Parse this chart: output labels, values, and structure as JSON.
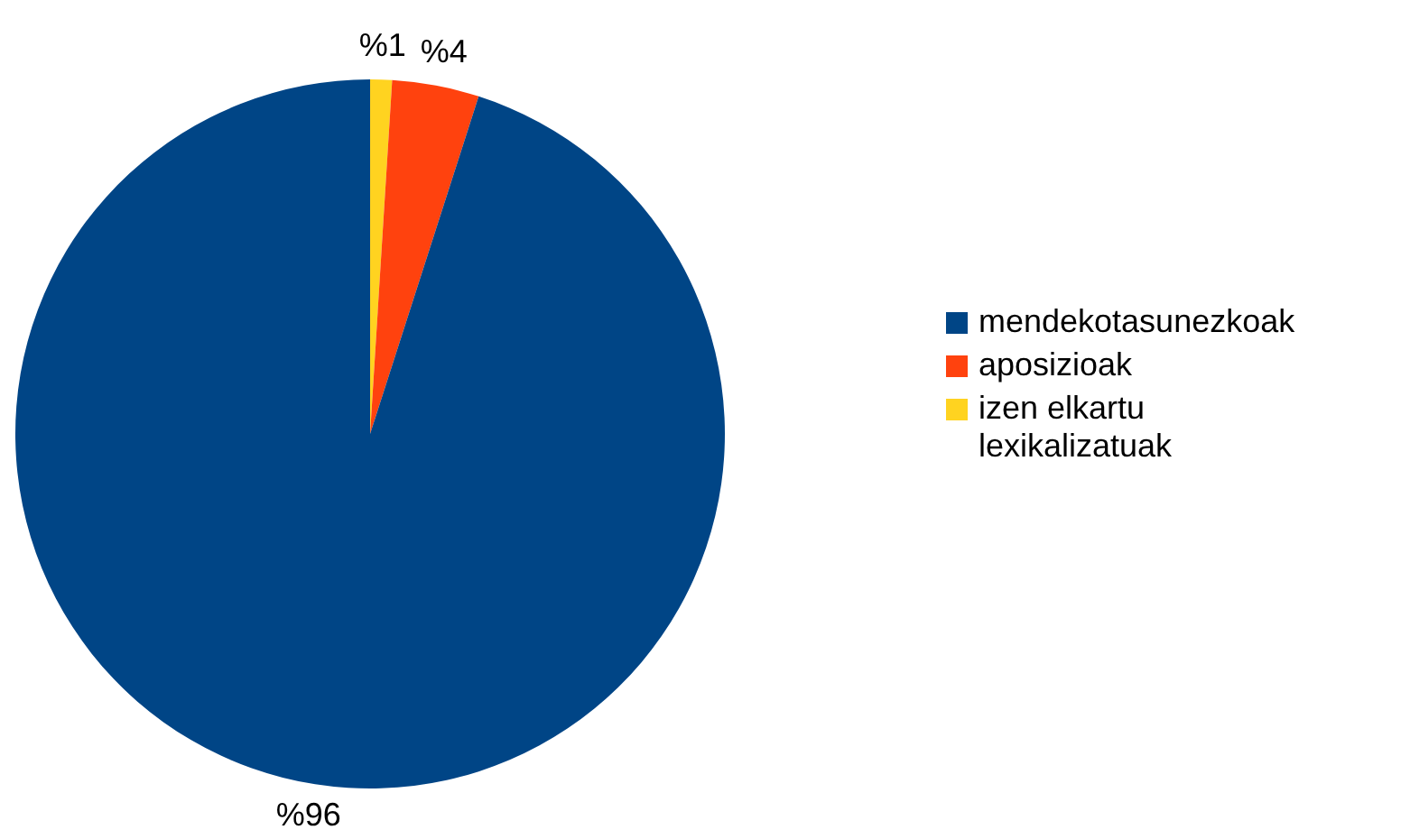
{
  "chart_data": {
    "type": "pie",
    "categories": [
      "mendekotasunezkoak",
      "aposizioak",
      "izen elkartu lexikalizatuak"
    ],
    "values": [
      96,
      4,
      1
    ],
    "colors": [
      "#004586",
      "#ff420e",
      "#ffd320"
    ],
    "value_labels": [
      "%96",
      "%4",
      "%1"
    ],
    "legend": "right"
  }
}
